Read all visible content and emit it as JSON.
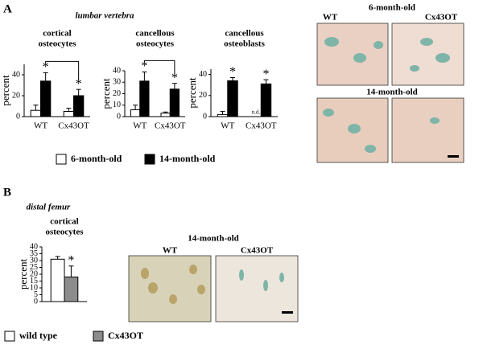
{
  "panel_a": {
    "letter": "A",
    "region": "lumbar vertebra",
    "image_top": "6-month-old",
    "image_bottom": "14-month-old",
    "image_wt": "WT",
    "image_cx": "Cx43OT"
  },
  "panel_b": {
    "letter": "B",
    "region": "distal femur",
    "image_title": "14-month-old",
    "image_wt": "WT",
    "image_cx": "Cx43OT"
  },
  "chart_data": [
    {
      "type": "bar",
      "title": [
        "cortical",
        "osteocytes"
      ],
      "ylabel": "percent",
      "categories": [
        "WT",
        "Cx43OT"
      ],
      "ylim": [
        0,
        50
      ],
      "yticks": [
        0,
        20,
        40
      ],
      "marker": "*",
      "bracket": true,
      "legend": true,
      "series": [
        {
          "name": "6-month-old",
          "color": "#ffffff",
          "values": [
            6,
            5
          ],
          "errors": [
            5,
            3
          ],
          "significant": [
            false,
            false
          ]
        },
        {
          "name": "14-month-old",
          "color": "#000000",
          "values": [
            34,
            20
          ],
          "errors": [
            8,
            6
          ],
          "significant": [
            true,
            true
          ]
        }
      ]
    },
    {
      "type": "bar",
      "title": [
        "cancellous",
        "osteocytes"
      ],
      "ylabel": "percent",
      "categories": [
        "WT",
        "Cx43OT"
      ],
      "ylim": [
        0,
        40
      ],
      "yticks": [
        0,
        10,
        20,
        30,
        40
      ],
      "marker": "*",
      "bracket": true,
      "legend": false,
      "series": [
        {
          "name": "6-month-old",
          "color": "#ffffff",
          "values": [
            6,
            3
          ],
          "errors": [
            4,
            1
          ],
          "significant": [
            false,
            false
          ]
        },
        {
          "name": "14-month-old",
          "color": "#000000",
          "values": [
            31,
            24
          ],
          "errors": [
            8,
            5
          ],
          "significant": [
            true,
            true
          ]
        }
      ]
    },
    {
      "type": "bar",
      "title": [
        "cancellous",
        "osteoblasts"
      ],
      "ylabel": "percent",
      "categories": [
        "WT",
        "Cx43OT"
      ],
      "ylim": [
        0,
        45
      ],
      "yticks": [
        0,
        20,
        40
      ],
      "marker": "*",
      "bracket": false,
      "legend": false,
      "series": [
        {
          "name": "6-month-old",
          "color": "#ffffff",
          "values": [
            2,
            null
          ],
          "value_labels": [
            null,
            "n.d."
          ],
          "errors": [
            3,
            null
          ],
          "significant": [
            false,
            false
          ]
        },
        {
          "name": "14-month-old",
          "color": "#000000",
          "values": [
            34,
            31
          ],
          "errors": [
            3,
            4
          ],
          "significant": [
            true,
            true
          ]
        }
      ]
    },
    {
      "type": "bar",
      "title": [
        "cortical",
        "osteocytes"
      ],
      "ylabel": "percent",
      "categories": [
        null
      ],
      "ylim": [
        0,
        40
      ],
      "yticks": [
        0,
        5,
        10,
        15,
        20,
        25,
        30,
        35,
        40
      ],
      "marker": "*",
      "bracket": false,
      "legend": true,
      "series": [
        {
          "name": "wild type",
          "color": "#ffffff",
          "values": [
            31
          ],
          "errors": [
            2
          ],
          "significant": [
            false
          ]
        },
        {
          "name": "Cx43OT",
          "color": "#8c8c8c",
          "values": [
            18
          ],
          "errors": [
            8
          ],
          "significant": [
            true
          ]
        }
      ]
    }
  ]
}
